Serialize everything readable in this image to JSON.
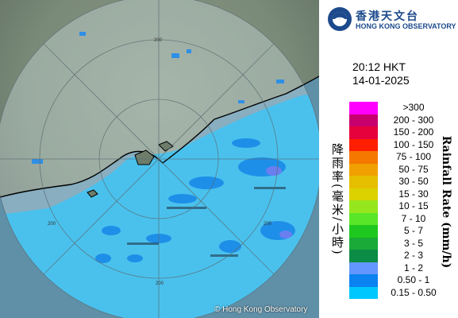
{
  "header": {
    "org_name_zh": "香港天文台",
    "org_name_en": "HONG KONG OBSERVATORY"
  },
  "timestamp": {
    "time": "20:12 HKT",
    "date": "14-01-2025"
  },
  "map": {
    "range_ring_labels": [
      "200",
      "200",
      "200",
      "200"
    ],
    "copyright": "© Hong Kong Observatory"
  },
  "legend": {
    "title_zh": "降雨率(毫米/小時)",
    "title_en": "Rainfall Rate (mm/h)",
    "items": [
      {
        "label": ">300",
        "color": "#ff00ff"
      },
      {
        "label": "200 - 300",
        "color": "#c8006e"
      },
      {
        "label": "150 - 200",
        "color": "#e6003c"
      },
      {
        "label": "100 - 150",
        "color": "#ff1e00"
      },
      {
        "label": "75 - 100",
        "color": "#f57800"
      },
      {
        "label": "50 - 75",
        "color": "#f0a000"
      },
      {
        "label": "30 - 50",
        "color": "#e6be00"
      },
      {
        "label": "15 - 30",
        "color": "#dcd200"
      },
      {
        "label": "10 - 15",
        "color": "#96e61e"
      },
      {
        "label": "7 - 10",
        "color": "#5ae628"
      },
      {
        "label": "5 - 7",
        "color": "#1ec81e"
      },
      {
        "label": "3 - 5",
        "color": "#19aa37"
      },
      {
        "label": "2 - 3",
        "color": "#0a8c46"
      },
      {
        "label": "1 - 2",
        "color": "#6496ff"
      },
      {
        "label": "0.50 - 1",
        "color": "#0a82f0"
      },
      {
        "label": "0.15 - 0.50",
        "color": "#00c8ff"
      }
    ]
  }
}
